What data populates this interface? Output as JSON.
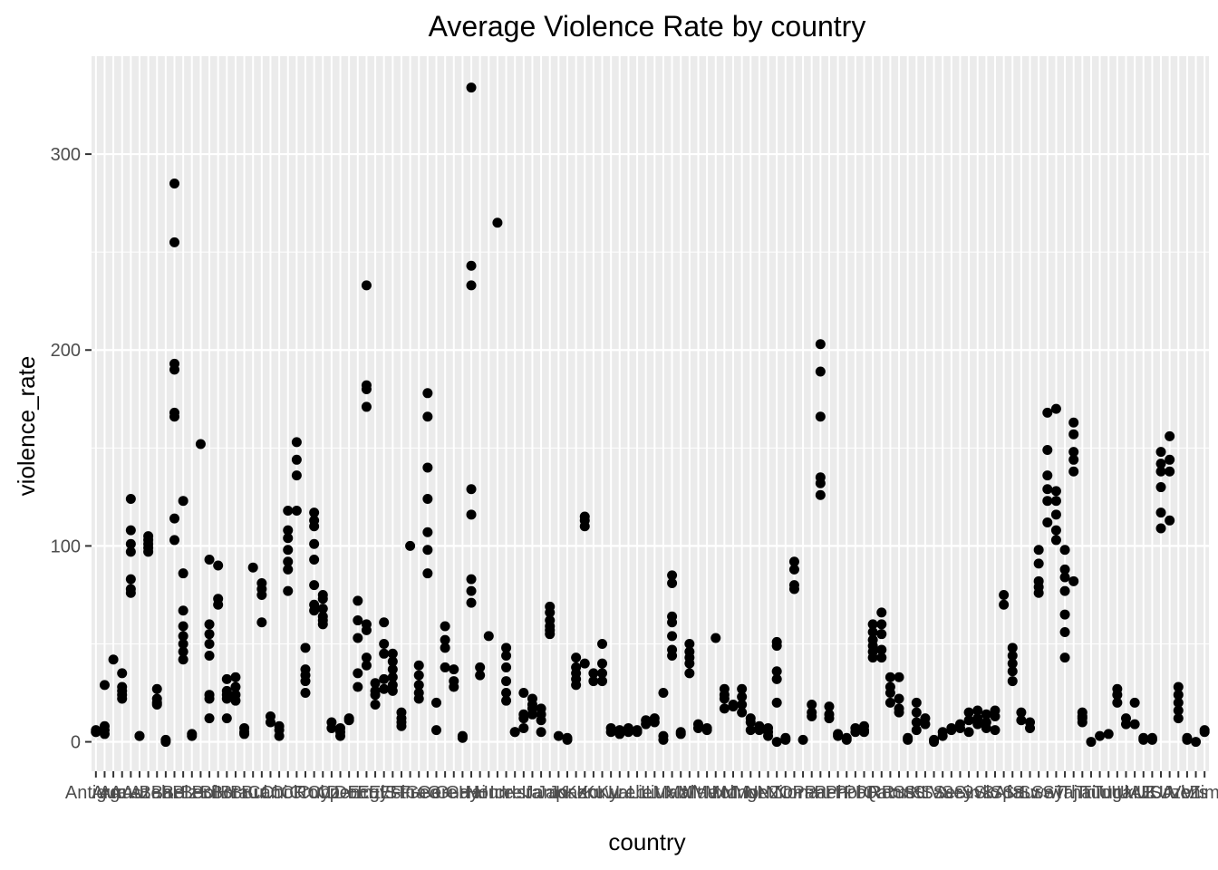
{
  "chart_data": {
    "type": "scatter",
    "title": "Average Violence Rate by country",
    "xlabel": "country",
    "ylabel": "violence_rate",
    "ylim": [
      -15,
      350
    ],
    "yticks": [
      0,
      100,
      200,
      300
    ],
    "grid": true,
    "legend": "none",
    "categories": [
      "Antigua",
      "Arg",
      "Arm",
      "Aus",
      "Aut",
      "Aze",
      "Bah",
      "Bar",
      "Bel",
      "Blz",
      "Ber",
      "Bol",
      "BiH",
      "Bot",
      "Bra",
      "Bru",
      "Bul",
      "Can",
      "Chi",
      "Col",
      "CR",
      "Cro",
      "Cub",
      "Cyp",
      "Cze",
      "Den",
      "Dom",
      "Ecu",
      "Egy",
      "ElS",
      "Est",
      "Fin",
      "Fra",
      "Geo",
      "Ger",
      "Gre",
      "Gua",
      "Guy",
      "Hai",
      "Hon",
      "Hun",
      "Ice",
      "Ire",
      "Isr",
      "Ita",
      "Jam",
      "Jap",
      "Jor",
      "Kaz",
      "Ken",
      "Kor",
      "Kuw",
      "Kyr",
      "Lat",
      "Leb",
      "Lie",
      "Lit",
      "Lux",
      "Mac",
      "Mal",
      "Mlt",
      "Mau",
      "Mex",
      "Mol",
      "Mon",
      "Mng",
      "Mor",
      "Net",
      "NZ",
      "Nic",
      "Nor",
      "Oma",
      "Pan",
      "Par",
      "Per",
      "Phi",
      "Pol",
      "Por",
      "PR",
      "Qat",
      "Rom",
      "Rus",
      "StK",
      "StL",
      "StV",
      "Sau",
      "Ser",
      "Sey",
      "Sin",
      "Svk",
      "Slo",
      "SAf",
      "Spa",
      "SrL",
      "Sur",
      "Swe",
      "Swi",
      "Syr",
      "Taj",
      "Tha",
      "Tri",
      "Tun",
      "Tur",
      "Uga",
      "Ukr",
      "UAE",
      "UK",
      "USA",
      "Uru",
      "Uzb",
      "Ven",
      "VIs",
      "Zim"
    ],
    "points": [
      [
        1,
        5
      ],
      [
        1,
        6
      ],
      [
        1,
        5
      ],
      [
        2,
        4
      ],
      [
        2,
        6
      ],
      [
        2,
        8
      ],
      [
        2,
        29
      ],
      [
        3,
        42
      ],
      [
        4,
        35
      ],
      [
        4,
        28
      ],
      [
        4,
        26
      ],
      [
        4,
        24
      ],
      [
        4,
        22
      ],
      [
        5,
        124
      ],
      [
        5,
        108
      ],
      [
        5,
        101
      ],
      [
        5,
        97
      ],
      [
        5,
        83
      ],
      [
        5,
        78
      ],
      [
        5,
        76
      ],
      [
        6,
        3
      ],
      [
        6,
        3
      ],
      [
        7,
        105
      ],
      [
        7,
        103
      ],
      [
        7,
        101
      ],
      [
        7,
        99
      ],
      [
        7,
        97
      ],
      [
        8,
        27
      ],
      [
        8,
        22
      ],
      [
        8,
        20
      ],
      [
        8,
        19
      ],
      [
        9,
        1
      ],
      [
        9,
        0
      ],
      [
        10,
        285
      ],
      [
        10,
        255
      ],
      [
        10,
        193
      ],
      [
        10,
        190
      ],
      [
        10,
        168
      ],
      [
        10,
        166
      ],
      [
        10,
        114
      ],
      [
        10,
        103
      ],
      [
        11,
        123
      ],
      [
        11,
        86
      ],
      [
        11,
        67
      ],
      [
        11,
        59
      ],
      [
        11,
        54
      ],
      [
        11,
        50
      ],
      [
        11,
        46
      ],
      [
        11,
        42
      ],
      [
        12,
        4
      ],
      [
        12,
        3
      ],
      [
        13,
        152
      ],
      [
        14,
        12
      ],
      [
        14,
        22
      ],
      [
        14,
        24
      ],
      [
        14,
        44
      ],
      [
        14,
        50
      ],
      [
        14,
        55
      ],
      [
        14,
        60
      ],
      [
        14,
        93
      ],
      [
        15,
        90
      ],
      [
        15,
        73
      ],
      [
        15,
        70
      ],
      [
        16,
        32
      ],
      [
        16,
        26
      ],
      [
        16,
        24
      ],
      [
        16,
        22
      ],
      [
        16,
        12
      ],
      [
        17,
        33
      ],
      [
        17,
        28
      ],
      [
        17,
        24
      ],
      [
        17,
        21
      ],
      [
        18,
        7
      ],
      [
        18,
        5
      ],
      [
        18,
        4
      ],
      [
        19,
        89
      ],
      [
        20,
        81
      ],
      [
        20,
        78
      ],
      [
        20,
        75
      ],
      [
        20,
        61
      ],
      [
        21,
        13
      ],
      [
        21,
        10
      ],
      [
        22,
        8
      ],
      [
        22,
        6
      ],
      [
        22,
        3
      ],
      [
        23,
        118
      ],
      [
        23,
        108
      ],
      [
        23,
        104
      ],
      [
        23,
        98
      ],
      [
        23,
        92
      ],
      [
        23,
        88
      ],
      [
        23,
        77
      ],
      [
        24,
        153
      ],
      [
        24,
        144
      ],
      [
        24,
        136
      ],
      [
        24,
        118
      ],
      [
        25,
        48
      ],
      [
        25,
        37
      ],
      [
        25,
        34
      ],
      [
        25,
        31
      ],
      [
        25,
        25
      ],
      [
        26,
        117
      ],
      [
        26,
        113
      ],
      [
        26,
        110
      ],
      [
        26,
        101
      ],
      [
        26,
        93
      ],
      [
        26,
        80
      ],
      [
        26,
        70
      ],
      [
        26,
        67
      ],
      [
        27,
        75
      ],
      [
        27,
        73
      ],
      [
        27,
        68
      ],
      [
        27,
        64
      ],
      [
        27,
        62
      ],
      [
        27,
        60
      ],
      [
        28,
        10
      ],
      [
        28,
        7
      ],
      [
        29,
        7
      ],
      [
        29,
        5
      ],
      [
        29,
        3
      ],
      [
        30,
        12
      ],
      [
        30,
        11
      ],
      [
        31,
        72
      ],
      [
        31,
        62
      ],
      [
        31,
        53
      ],
      [
        31,
        35
      ],
      [
        31,
        28
      ],
      [
        32,
        233
      ],
      [
        32,
        182
      ],
      [
        32,
        180
      ],
      [
        32,
        171
      ],
      [
        32,
        60
      ],
      [
        32,
        57
      ],
      [
        32,
        43
      ],
      [
        32,
        39
      ],
      [
        33,
        30
      ],
      [
        33,
        26
      ],
      [
        33,
        24
      ],
      [
        33,
        19
      ],
      [
        34,
        61
      ],
      [
        34,
        50
      ],
      [
        34,
        45
      ],
      [
        34,
        32
      ],
      [
        34,
        27
      ],
      [
        35,
        45
      ],
      [
        35,
        41
      ],
      [
        35,
        37
      ],
      [
        35,
        33
      ],
      [
        35,
        29
      ],
      [
        35,
        26
      ],
      [
        36,
        15
      ],
      [
        36,
        12
      ],
      [
        36,
        10
      ],
      [
        36,
        8
      ],
      [
        37,
        100
      ],
      [
        38,
        39
      ],
      [
        38,
        34
      ],
      [
        38,
        29
      ],
      [
        38,
        25
      ],
      [
        38,
        22
      ],
      [
        39,
        178
      ],
      [
        39,
        166
      ],
      [
        39,
        140
      ],
      [
        39,
        124
      ],
      [
        39,
        107
      ],
      [
        39,
        98
      ],
      [
        39,
        86
      ],
      [
        40,
        6
      ],
      [
        40,
        20
      ],
      [
        41,
        59
      ],
      [
        41,
        52
      ],
      [
        41,
        48
      ],
      [
        41,
        38
      ],
      [
        42,
        37
      ],
      [
        42,
        31
      ],
      [
        42,
        28
      ],
      [
        43,
        3
      ],
      [
        43,
        2
      ],
      [
        44,
        334
      ],
      [
        44,
        243
      ],
      [
        44,
        233
      ],
      [
        44,
        129
      ],
      [
        44,
        116
      ],
      [
        44,
        83
      ],
      [
        44,
        77
      ],
      [
        44,
        71
      ],
      [
        45,
        38
      ],
      [
        45,
        34
      ],
      [
        46,
        54
      ],
      [
        47,
        265
      ],
      [
        48,
        48
      ],
      [
        48,
        44
      ],
      [
        48,
        38
      ],
      [
        48,
        31
      ],
      [
        48,
        25
      ],
      [
        48,
        21
      ],
      [
        49,
        5
      ],
      [
        49,
        5
      ],
      [
        50,
        25
      ],
      [
        50,
        14
      ],
      [
        50,
        12
      ],
      [
        50,
        7
      ],
      [
        51,
        22
      ],
      [
        51,
        19
      ],
      [
        51,
        17
      ],
      [
        51,
        14
      ],
      [
        52,
        17
      ],
      [
        52,
        14
      ],
      [
        52,
        11
      ],
      [
        52,
        5
      ],
      [
        53,
        69
      ],
      [
        53,
        66
      ],
      [
        53,
        62
      ],
      [
        53,
        59
      ],
      [
        53,
        57
      ],
      [
        53,
        55
      ],
      [
        54,
        3
      ],
      [
        55,
        2
      ],
      [
        55,
        1
      ],
      [
        56,
        43
      ],
      [
        56,
        38
      ],
      [
        56,
        35
      ],
      [
        56,
        32
      ],
      [
        56,
        29
      ],
      [
        57,
        115
      ],
      [
        57,
        113
      ],
      [
        57,
        110
      ],
      [
        57,
        40
      ],
      [
        58,
        35
      ],
      [
        58,
        31
      ],
      [
        59,
        50
      ],
      [
        59,
        40
      ],
      [
        59,
        35
      ],
      [
        59,
        31
      ],
      [
        60,
        7
      ],
      [
        60,
        5
      ],
      [
        61,
        6
      ],
      [
        61,
        4
      ],
      [
        62,
        7
      ],
      [
        62,
        5
      ],
      [
        63,
        6
      ],
      [
        63,
        5
      ],
      [
        64,
        11
      ],
      [
        64,
        9
      ],
      [
        65,
        12
      ],
      [
        65,
        10
      ],
      [
        66,
        25
      ],
      [
        66,
        3
      ],
      [
        66,
        1
      ],
      [
        67,
        85
      ],
      [
        67,
        81
      ],
      [
        67,
        64
      ],
      [
        67,
        61
      ],
      [
        67,
        54
      ],
      [
        67,
        47
      ],
      [
        67,
        44
      ],
      [
        68,
        5
      ],
      [
        68,
        4
      ],
      [
        69,
        50
      ],
      [
        69,
        46
      ],
      [
        69,
        43
      ],
      [
        69,
        40
      ],
      [
        69,
        35
      ],
      [
        70,
        9
      ],
      [
        70,
        7
      ],
      [
        71,
        7
      ],
      [
        71,
        6
      ],
      [
        72,
        53
      ],
      [
        73,
        27
      ],
      [
        73,
        24
      ],
      [
        73,
        22
      ],
      [
        73,
        17
      ],
      [
        74,
        19
      ],
      [
        74,
        18
      ],
      [
        75,
        27
      ],
      [
        75,
        23
      ],
      [
        75,
        19
      ],
      [
        75,
        15
      ],
      [
        76,
        12
      ],
      [
        76,
        10
      ],
      [
        76,
        6
      ],
      [
        77,
        8
      ],
      [
        77,
        6
      ],
      [
        78,
        7
      ],
      [
        78,
        5
      ],
      [
        78,
        3
      ],
      [
        79,
        51
      ],
      [
        79,
        49
      ],
      [
        79,
        36
      ],
      [
        79,
        32
      ],
      [
        79,
        20
      ],
      [
        79,
        0
      ],
      [
        80,
        2
      ],
      [
        80,
        1
      ],
      [
        81,
        92
      ],
      [
        81,
        88
      ],
      [
        81,
        80
      ],
      [
        81,
        78
      ],
      [
        82,
        1
      ],
      [
        83,
        19
      ],
      [
        83,
        15
      ],
      [
        83,
        13
      ],
      [
        84,
        203
      ],
      [
        84,
        189
      ],
      [
        84,
        166
      ],
      [
        84,
        135
      ],
      [
        84,
        132
      ],
      [
        84,
        126
      ],
      [
        85,
        18
      ],
      [
        85,
        14
      ],
      [
        85,
        12
      ],
      [
        86,
        4
      ],
      [
        86,
        3
      ],
      [
        87,
        2
      ],
      [
        87,
        1
      ],
      [
        88,
        7
      ],
      [
        88,
        5
      ],
      [
        89,
        8
      ],
      [
        89,
        6
      ],
      [
        89,
        5
      ],
      [
        90,
        60
      ],
      [
        90,
        56
      ],
      [
        90,
        52
      ],
      [
        90,
        49
      ],
      [
        90,
        46
      ],
      [
        90,
        43
      ],
      [
        91,
        66
      ],
      [
        91,
        60
      ],
      [
        91,
        55
      ],
      [
        91,
        47
      ],
      [
        91,
        43
      ],
      [
        92,
        33
      ],
      [
        92,
        28
      ],
      [
        92,
        25
      ],
      [
        92,
        20
      ],
      [
        93,
        33
      ],
      [
        93,
        22
      ],
      [
        93,
        17
      ],
      [
        93,
        15
      ],
      [
        94,
        2
      ],
      [
        94,
        1
      ],
      [
        95,
        20
      ],
      [
        95,
        15
      ],
      [
        95,
        10
      ],
      [
        95,
        6
      ],
      [
        96,
        12
      ],
      [
        96,
        9
      ],
      [
        97,
        1
      ],
      [
        97,
        0
      ],
      [
        98,
        5
      ],
      [
        98,
        3
      ],
      [
        99,
        7
      ],
      [
        99,
        6
      ],
      [
        100,
        9
      ],
      [
        100,
        7
      ],
      [
        101,
        15
      ],
      [
        101,
        11
      ],
      [
        101,
        5
      ],
      [
        102,
        16
      ],
      [
        102,
        12
      ],
      [
        102,
        9
      ],
      [
        103,
        14
      ],
      [
        103,
        10
      ],
      [
        103,
        7
      ],
      [
        104,
        16
      ],
      [
        104,
        13
      ],
      [
        104,
        6
      ],
      [
        105,
        75
      ],
      [
        105,
        70
      ],
      [
        106,
        48
      ],
      [
        106,
        44
      ],
      [
        106,
        40
      ],
      [
        106,
        36
      ],
      [
        106,
        31
      ],
      [
        107,
        15
      ],
      [
        107,
        11
      ],
      [
        108,
        10
      ],
      [
        108,
        7
      ],
      [
        109,
        98
      ],
      [
        109,
        91
      ],
      [
        109,
        82
      ],
      [
        109,
        79
      ],
      [
        109,
        76
      ],
      [
        110,
        168
      ],
      [
        110,
        149
      ],
      [
        110,
        136
      ],
      [
        110,
        129
      ],
      [
        110,
        123
      ],
      [
        110,
        112
      ],
      [
        111,
        170
      ],
      [
        111,
        128
      ],
      [
        111,
        123
      ],
      [
        111,
        116
      ],
      [
        111,
        108
      ],
      [
        111,
        103
      ],
      [
        112,
        98
      ],
      [
        112,
        88
      ],
      [
        112,
        84
      ],
      [
        112,
        77
      ],
      [
        112,
        65
      ],
      [
        112,
        56
      ],
      [
        112,
        43
      ],
      [
        113,
        163
      ],
      [
        113,
        157
      ],
      [
        113,
        148
      ],
      [
        113,
        144
      ],
      [
        113,
        138
      ],
      [
        113,
        82
      ],
      [
        114,
        15
      ],
      [
        114,
        12
      ],
      [
        114,
        10
      ]
    ],
    "points_tail": [
      [
        114,
        13
      ],
      [
        115,
        0
      ],
      [
        116,
        3
      ],
      [
        117,
        4
      ],
      [
        118,
        27
      ],
      [
        118,
        24
      ],
      [
        118,
        20
      ],
      [
        119,
        12
      ],
      [
        119,
        9
      ],
      [
        120,
        20
      ],
      [
        120,
        9
      ],
      [
        121,
        2
      ],
      [
        121,
        1
      ],
      [
        122,
        2
      ],
      [
        122,
        1
      ],
      [
        123,
        148
      ],
      [
        123,
        142
      ],
      [
        123,
        138
      ],
      [
        123,
        130
      ],
      [
        123,
        117
      ],
      [
        123,
        109
      ],
      [
        124,
        156
      ],
      [
        124,
        144
      ],
      [
        124,
        138
      ],
      [
        124,
        113
      ],
      [
        125,
        28
      ],
      [
        125,
        24
      ],
      [
        125,
        20
      ],
      [
        125,
        16
      ],
      [
        125,
        12
      ],
      [
        126,
        2
      ],
      [
        126,
        1
      ],
      [
        127,
        0
      ],
      [
        128,
        5
      ],
      [
        128,
        6
      ]
    ]
  }
}
